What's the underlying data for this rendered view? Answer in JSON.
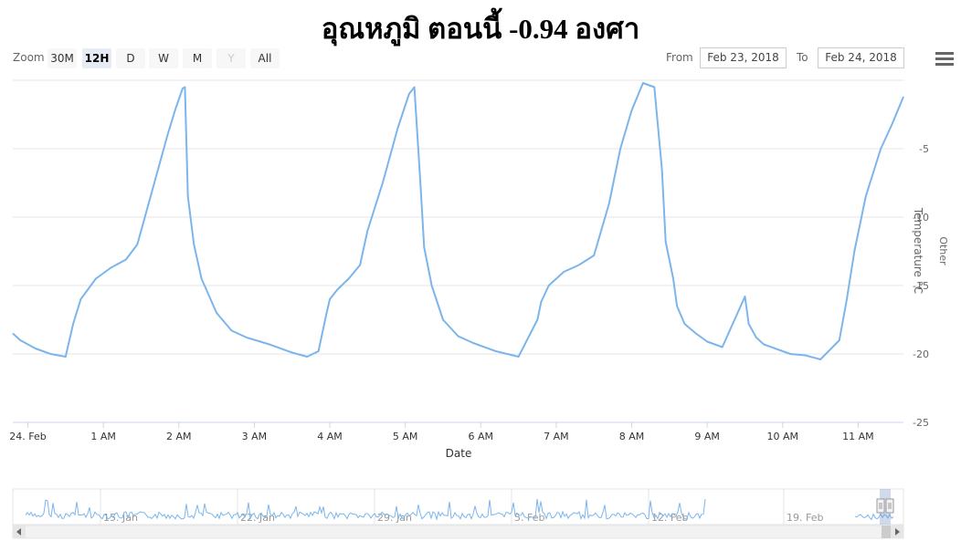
{
  "title": "อุณหภูมิ ตอนนี้ -0.94 องศา",
  "range_selector": {
    "zoom_label": "Zoom",
    "buttons": [
      {
        "label": "30M",
        "state": "normal"
      },
      {
        "label": "12H",
        "state": "active"
      },
      {
        "label": "D",
        "state": "normal"
      },
      {
        "label": "W",
        "state": "normal"
      },
      {
        "label": "M",
        "state": "normal"
      },
      {
        "label": "Y",
        "state": "disabled"
      },
      {
        "label": "All",
        "state": "normal"
      }
    ],
    "from_label": "From",
    "from_value": "Feb 23, 2018",
    "to_label": "To",
    "to_value": "Feb 24, 2018"
  },
  "menu_icon": "hamburger-menu-icon",
  "colors": {
    "series": "#7cb5ec",
    "grid": "#e6e6e6",
    "axis_text": "#666666"
  },
  "chart_data": {
    "type": "line",
    "title": "อุณหภูมิ ตอนนี้ -0.94 องศา",
    "xlabel": "Date",
    "ylabel": "Temperature °C",
    "y2label": "Other",
    "ylim": [
      -25,
      0
    ],
    "yticks": [
      -5,
      -10,
      -15,
      -20,
      -25
    ],
    "ytick_labels": [
      "-5",
      "-10",
      "-15",
      "-20",
      "-25"
    ],
    "xlim": [
      -0.2,
      11.6
    ],
    "xticks": [
      {
        "x": 0,
        "label": "24. Feb"
      },
      {
        "x": 1,
        "label": "1 AM"
      },
      {
        "x": 2,
        "label": "2 AM"
      },
      {
        "x": 3,
        "label": "3 AM"
      },
      {
        "x": 4,
        "label": "4 AM"
      },
      {
        "x": 5,
        "label": "5 AM"
      },
      {
        "x": 6,
        "label": "6 AM"
      },
      {
        "x": 7,
        "label": "7 AM"
      },
      {
        "x": 8,
        "label": "8 AM"
      },
      {
        "x": 9,
        "label": "9 AM"
      },
      {
        "x": 10,
        "label": "10 AM"
      },
      {
        "x": 11,
        "label": "11 AM"
      }
    ],
    "grid": true,
    "series": [
      {
        "name": "",
        "x": [
          -0.2,
          -0.1,
          0.1,
          0.3,
          0.5,
          0.6,
          0.7,
          0.9,
          1.1,
          1.3,
          1.45,
          1.55,
          1.7,
          1.85,
          1.95,
          2.05,
          2.08,
          2.12,
          2.2,
          2.3,
          2.5,
          2.7,
          2.9,
          3.2,
          3.5,
          3.7,
          3.85,
          3.95,
          4.0,
          4.1,
          4.25,
          4.4,
          4.5,
          4.7,
          4.9,
          5.05,
          5.12,
          5.2,
          5.25,
          5.35,
          5.5,
          5.7,
          5.9,
          6.2,
          6.5,
          6.75,
          6.8,
          6.9,
          7.1,
          7.3,
          7.5,
          7.7,
          7.85,
          8.0,
          8.15,
          8.3,
          8.4,
          8.45,
          8.55,
          8.6,
          8.7,
          8.85,
          9.0,
          9.2,
          9.5,
          9.55,
          9.65,
          9.75,
          9.95,
          10.1,
          10.3,
          10.5,
          10.75,
          10.85,
          10.95,
          11.1,
          11.3,
          11.45,
          11.6
        ],
        "y": [
          -18.5,
          -19.0,
          -19.6,
          -20.0,
          -20.2,
          -17.8,
          -16.0,
          -14.5,
          -13.7,
          -13.1,
          -12.0,
          -10.0,
          -7.0,
          -4.0,
          -2.2,
          -0.6,
          -0.5,
          -8.5,
          -12.0,
          -14.5,
          -17.0,
          -18.3,
          -18.8,
          -19.3,
          -19.9,
          -20.2,
          -19.8,
          -17.2,
          -16.0,
          -15.3,
          -14.5,
          -13.5,
          -11.0,
          -7.5,
          -3.5,
          -1.0,
          -0.5,
          -7.5,
          -12.2,
          -15.0,
          -17.5,
          -18.7,
          -19.2,
          -19.8,
          -20.2,
          -17.5,
          -16.2,
          -15.0,
          -14.0,
          -13.5,
          -12.8,
          -9.0,
          -5.0,
          -2.2,
          -0.2,
          -0.5,
          -6.5,
          -11.8,
          -14.5,
          -16.5,
          -17.8,
          -18.5,
          -19.1,
          -19.5,
          -15.8,
          -17.8,
          -18.8,
          -19.3,
          -19.7,
          -20.0,
          -20.1,
          -20.4,
          -19.0,
          -16.0,
          -12.5,
          -8.5,
          -5.0,
          -3.2,
          -1.2
        ]
      }
    ]
  },
  "navigator": {
    "labels": [
      "15. Jan",
      "22. Jan",
      "29. Jan",
      "5. Feb",
      "12. Feb",
      "19. Feb"
    ],
    "scroll_left_icon": "arrow-left-icon",
    "scroll_right_icon": "arrow-right-icon",
    "handle_icon": "navigator-handle-icon"
  }
}
